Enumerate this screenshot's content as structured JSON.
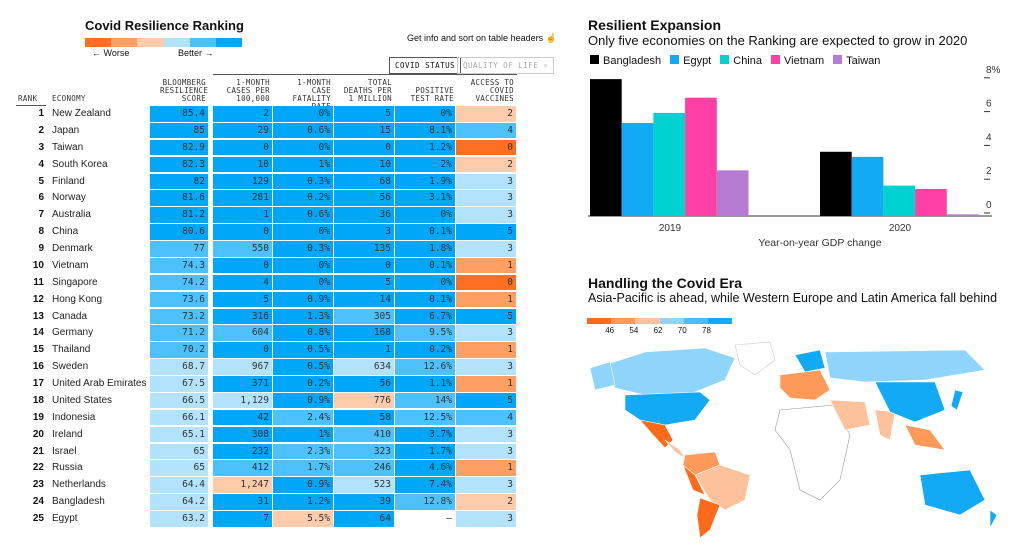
{
  "ranking": {
    "title": "Covid Resilience Ranking",
    "legend": {
      "worse": "← Worse",
      "better": "Better →",
      "colors": [
        "#fd7022",
        "#fd9f62",
        "#fecbab",
        "#b3e3fc",
        "#4cc1fb",
        "#00a7f8"
      ]
    },
    "hint": "Get info and sort on table headers",
    "tabs": [
      "COVID STATUS",
      "QUALITY OF LIFE ▿"
    ],
    "headers": {
      "rank": "RANK",
      "economy": "ECONOMY",
      "score": "BLOOMBERG RESILIENCE SCORE",
      "cases": "1-MONTH CASES PER 100,000",
      "fatality": "1-MONTH CASE FATALITY RATE",
      "deaths": "TOTAL DEATHS PER 1 MILLION",
      "positive": "POSITIVE TEST RATE",
      "vaccines": "ACCESS TO COVID VACCINES"
    },
    "rows": [
      {
        "rank": "1",
        "economy": "New Zealand",
        "values": [
          "85.4",
          "2",
          "0%",
          "5",
          "0%",
          "2"
        ],
        "levels": [
          5,
          5,
          5,
          5,
          5,
          2
        ]
      },
      {
        "rank": "2",
        "economy": "Japan",
        "values": [
          "85",
          "29",
          "0.6%",
          "15",
          "8.1%",
          "4"
        ],
        "levels": [
          5,
          5,
          5,
          5,
          5,
          4
        ]
      },
      {
        "rank": "3",
        "economy": "Taiwan",
        "values": [
          "82.9",
          "0",
          "0%",
          "0",
          "1.2%",
          "0"
        ],
        "levels": [
          5,
          5,
          5,
          5,
          5,
          0
        ]
      },
      {
        "rank": "4",
        "economy": "South Korea",
        "values": [
          "82.3",
          "10",
          "1%",
          "10",
          "2%",
          "2"
        ],
        "levels": [
          5,
          5,
          5,
          5,
          5,
          2
        ]
      },
      {
        "rank": "5",
        "economy": "Finland",
        "values": [
          "82",
          "129",
          "0.3%",
          "68",
          "1.9%",
          "3"
        ],
        "levels": [
          5,
          5,
          5,
          5,
          5,
          3
        ]
      },
      {
        "rank": "6",
        "economy": "Norway",
        "values": [
          "81.6",
          "281",
          "0.2%",
          "56",
          "3.1%",
          "3"
        ],
        "levels": [
          5,
          5,
          5,
          5,
          5,
          3
        ]
      },
      {
        "rank": "7",
        "economy": "Australia",
        "values": [
          "81.2",
          "1",
          "0.6%",
          "36",
          "0%",
          "3"
        ],
        "levels": [
          5,
          5,
          5,
          5,
          5,
          3
        ]
      },
      {
        "rank": "8",
        "economy": "China",
        "values": [
          "80.6",
          "0",
          "0%",
          "3",
          "0.1%",
          "5"
        ],
        "levels": [
          5,
          5,
          5,
          5,
          5,
          5
        ]
      },
      {
        "rank": "9",
        "economy": "Denmark",
        "values": [
          "77",
          "550",
          "0.3%",
          "135",
          "1.8%",
          "3"
        ],
        "levels": [
          4,
          4,
          5,
          5,
          5,
          3
        ]
      },
      {
        "rank": "10",
        "economy": "Vietnam",
        "values": [
          "74.3",
          "0",
          "0%",
          "0",
          "0.1%",
          "1"
        ],
        "levels": [
          4,
          5,
          5,
          5,
          5,
          1
        ]
      },
      {
        "rank": "11",
        "economy": "Singapore",
        "values": [
          "74.2",
          "4",
          "0%",
          "5",
          "0%",
          "0"
        ],
        "levels": [
          4,
          5,
          5,
          5,
          5,
          0
        ]
      },
      {
        "rank": "12",
        "economy": "Hong Kong",
        "values": [
          "73.6",
          "5",
          "0.9%",
          "14",
          "0.1%",
          "1"
        ],
        "levels": [
          4,
          5,
          5,
          5,
          5,
          1
        ]
      },
      {
        "rank": "13",
        "economy": "Canada",
        "values": [
          "73.2",
          "316",
          "1.3%",
          "305",
          "6.7%",
          "5"
        ],
        "levels": [
          4,
          5,
          5,
          4,
          5,
          5
        ]
      },
      {
        "rank": "14",
        "economy": "Germany",
        "values": [
          "71.2",
          "604",
          "0.8%",
          "168",
          "9.5%",
          "3"
        ],
        "levels": [
          4,
          4,
          5,
          5,
          4,
          3
        ]
      },
      {
        "rank": "15",
        "economy": "Thailand",
        "values": [
          "70.2",
          "0",
          "0.5%",
          "1",
          "0.2%",
          "1"
        ],
        "levels": [
          4,
          5,
          5,
          5,
          5,
          1
        ]
      },
      {
        "rank": "16",
        "economy": "Sweden",
        "values": [
          "68.7",
          "967",
          "0.5%",
          "634",
          "12.6%",
          "3"
        ],
        "levels": [
          3,
          3,
          5,
          3,
          4,
          3
        ]
      },
      {
        "rank": "17",
        "economy": "United Arab Emirates",
        "values": [
          "67.5",
          "371",
          "0.2%",
          "56",
          "1.1%",
          "1"
        ],
        "levels": [
          3,
          5,
          5,
          5,
          5,
          1
        ]
      },
      {
        "rank": "18",
        "economy": "United States",
        "values": [
          "66.5",
          "1,129",
          "0.9%",
          "776",
          "14%",
          "5"
        ],
        "levels": [
          3,
          3,
          5,
          2,
          4,
          5
        ]
      },
      {
        "rank": "19",
        "economy": "Indonesia",
        "values": [
          "66.1",
          "42",
          "2.4%",
          "58",
          "12.5%",
          "4"
        ],
        "levels": [
          3,
          5,
          4,
          5,
          4,
          4
        ]
      },
      {
        "rank": "20",
        "economy": "Ireland",
        "values": [
          "65.1",
          "308",
          "1%",
          "410",
          "3.7%",
          "3"
        ],
        "levels": [
          3,
          5,
          5,
          4,
          5,
          3
        ]
      },
      {
        "rank": "21",
        "economy": "Israel",
        "values": [
          "65",
          "232",
          "2.3%",
          "323",
          "1.7%",
          "3"
        ],
        "levels": [
          3,
          5,
          4,
          4,
          5,
          3
        ]
      },
      {
        "rank": "22",
        "economy": "Russia",
        "values": [
          "65",
          "412",
          "1.7%",
          "246",
          "4.6%",
          "1"
        ],
        "levels": [
          3,
          4,
          4,
          4,
          5,
          1
        ]
      },
      {
        "rank": "23",
        "economy": "Netherlands",
        "values": [
          "64.4",
          "1,247",
          "0.9%",
          "523",
          "7.4%",
          "3"
        ],
        "levels": [
          3,
          2,
          5,
          3,
          5,
          3
        ]
      },
      {
        "rank": "24",
        "economy": "Bangladesh",
        "values": [
          "64.2",
          "31",
          "1.2%",
          "39",
          "12.8%",
          "2"
        ],
        "levels": [
          3,
          5,
          5,
          5,
          4,
          2
        ]
      },
      {
        "rank": "25",
        "economy": "Egypt",
        "values": [
          "63.2",
          "7",
          "5.5%",
          "64",
          "–",
          "3"
        ],
        "levels": [
          3,
          5,
          2,
          5,
          null,
          3
        ]
      }
    ]
  },
  "gdp": {
    "title": "Resilient Expansion",
    "subtitle": "Only five economies on the Ranking are expected to grow in 2020",
    "chart_data": {
      "type": "bar",
      "categories": [
        "2019",
        "2020"
      ],
      "series": [
        {
          "name": "Bangladesh",
          "color": "#000000",
          "values": [
            8.1,
            3.8
          ]
        },
        {
          "name": "Egypt",
          "color": "#12a9f5",
          "values": [
            5.5,
            3.5
          ]
        },
        {
          "name": "China",
          "color": "#00d2d2",
          "values": [
            6.1,
            1.8
          ]
        },
        {
          "name": "Vietnam",
          "color": "#ff3fa6",
          "values": [
            7.0,
            1.6
          ]
        },
        {
          "name": "Taiwan",
          "color": "#b57bd3",
          "values": [
            2.7,
            0.1
          ]
        }
      ],
      "xlabel": "Year-on-year GDP change",
      "ylim": [
        0,
        8
      ],
      "yticks": [
        "0",
        "2",
        "4",
        "6",
        "8%"
      ],
      "legend": "top-left",
      "axis_side": "right"
    }
  },
  "map": {
    "title": "Handling the Covid Era",
    "subtitle": "Asia-Pacific is ahead, while Western Europe and Latin America fall behind",
    "legend_ticks": [
      "46",
      "54",
      "62",
      "70",
      "78"
    ],
    "colors": [
      "#fd6a1a",
      "#fd9a5a",
      "#fdc19c",
      "#8fd4fb",
      "#4cbcf8",
      "#12a9f5"
    ]
  }
}
